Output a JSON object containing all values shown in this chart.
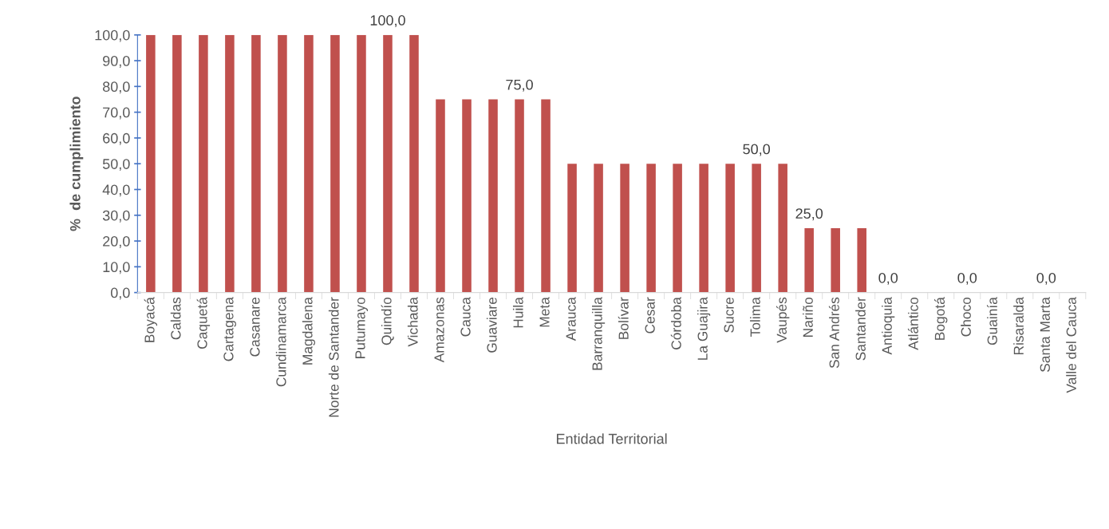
{
  "chart_data": {
    "type": "bar",
    "xlabel": "Entidad Territorial",
    "ylabel": "%  de cumplimiento",
    "categories": [
      "Boyacá",
      "Caldas",
      "Caquetá",
      "Cartagena",
      "Casanare",
      "Cundinamarca",
      "Magdalena",
      "Norte de Santander",
      "Putumayo",
      "Quindío",
      "Vichada",
      "Amazonas",
      "Cauca",
      "Guaviare",
      "Huila",
      "Meta",
      "Arauca",
      "Barranquilla",
      "Bolívar",
      "Cesar",
      "Córdoba",
      "La Guajira",
      "Sucre",
      "Tolima",
      "Vaupés",
      "Nariño",
      "San Andrés",
      "Santander",
      "Antioquia",
      "Atlántico",
      "Bogotá",
      "Choco",
      "Guainía",
      "Risaralda",
      "Santa Marta",
      "Valle del Cauca"
    ],
    "values": [
      100,
      100,
      100,
      100,
      100,
      100,
      100,
      100,
      100,
      100,
      100,
      75,
      75,
      75,
      75,
      75,
      50,
      50,
      50,
      50,
      50,
      50,
      50,
      50,
      50,
      25,
      25,
      25,
      0,
      0,
      0,
      0,
      0,
      0,
      0,
      0
    ],
    "value_labels": [
      null,
      null,
      null,
      null,
      null,
      null,
      null,
      null,
      null,
      "100,0",
      null,
      null,
      null,
      null,
      "75,0",
      null,
      null,
      null,
      null,
      null,
      null,
      null,
      null,
      "50,0",
      null,
      "25,0",
      null,
      null,
      "0,0",
      null,
      null,
      "0,0",
      null,
      null,
      "0,0",
      null
    ],
    "color": "#c0504d",
    "ylim": [
      0,
      100
    ],
    "yticks": [
      {
        "value": 0,
        "label": "0,0"
      },
      {
        "value": 10,
        "label": "10,0"
      },
      {
        "value": 20,
        "label": "20,0"
      },
      {
        "value": 30,
        "label": "30,0"
      },
      {
        "value": 40,
        "label": "40,0"
      },
      {
        "value": 50,
        "label": "50,0"
      },
      {
        "value": 60,
        "label": "60,0"
      },
      {
        "value": 70,
        "label": "70,0"
      },
      {
        "value": 80,
        "label": "80,0"
      },
      {
        "value": 90,
        "label": "90,0"
      },
      {
        "value": 100,
        "label": "100,0"
      }
    ],
    "grid": false,
    "legend": false
  }
}
